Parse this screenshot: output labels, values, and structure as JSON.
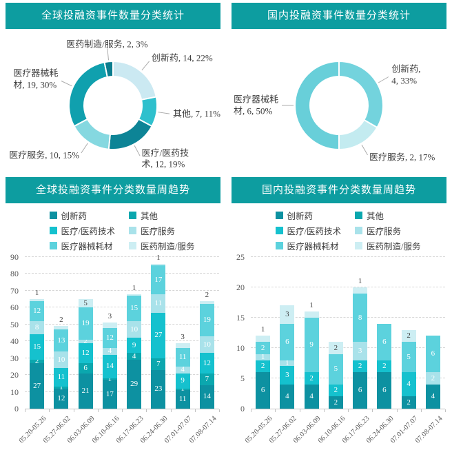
{
  "accent_color": "#0d9da0",
  "label_color": "#3f3f3f",
  "axis_color": "#595959",
  "chart_data": [
    {
      "type": "pie",
      "variant": "donut",
      "title": "全球投融资事件数量分类统计",
      "labels": [
        "创新药",
        "其他",
        "医疗/医药技术",
        "医疗服务",
        "医疗器械耗材",
        "医药制造/服务"
      ],
      "values": [
        14,
        7,
        12,
        10,
        19,
        2
      ],
      "percents": [
        "22%",
        "11%",
        "19%",
        "15%",
        "30%",
        "3%"
      ],
      "display_labels": [
        "创新药, 14, 22%",
        "其他, 7, 11%",
        "医疗/医药技\n术, 12, 19%",
        "医疗服务, 10, 15%",
        "医疗器械耗\n材, 19, 30%",
        "医药制造/服务, 2, 3%"
      ],
      "colors": [
        "#cbe9f2",
        "#2fc0cd",
        "#0d8496",
        "#85d8e0",
        "#10a0ae",
        "#0b7d8e"
      ],
      "legend": false
    },
    {
      "type": "pie",
      "variant": "donut",
      "title": "国内投融资事件数量分类统计",
      "labels": [
        "创新药",
        "医疗服务",
        "医疗器械耗材"
      ],
      "values": [
        4,
        2,
        6
      ],
      "percents": [
        "33%",
        "17%",
        "50%"
      ],
      "display_labels": [
        "创新药,\n4, 33%",
        "医疗服务, 2, 17%",
        "医疗器械耗\n材, 6, 50%"
      ],
      "colors": [
        "#73d3dd",
        "#c3ebf0",
        "#68cfd9"
      ],
      "legend": false
    },
    {
      "type": "bar",
      "stacked": true,
      "title": "全球投融资事件分类数量周趋势",
      "categories": [
        "05.20-05.26",
        "05.27-06.02",
        "06.03-06.09",
        "06.10-06.16",
        "06.17-06.23",
        "06.24-06.30",
        "07.01-07.07",
        "07.08-07.14"
      ],
      "ylim": [
        0,
        90
      ],
      "y_step": 10,
      "grid": true,
      "legend_position": "top",
      "series": [
        {
          "name": "创新药",
          "color": "#0d91a1",
          "values": [
            27,
            12,
            21,
            17,
            29,
            23,
            11,
            14
          ]
        },
        {
          "name": "其他",
          "color": "#0ba7ae",
          "values": [
            2,
            1,
            6,
            1,
            4,
            7,
            1,
            7
          ]
        },
        {
          "name": "医疗/医药技术",
          "color": "#15c1ce",
          "values": [
            15,
            11,
            12,
            14,
            9,
            27,
            9,
            12
          ]
        },
        {
          "name": "医疗服务",
          "color": "#a9e2ea",
          "values": [
            8,
            10,
            2,
            4,
            10,
            11,
            4,
            10
          ]
        },
        {
          "name": "医疗器械耗材",
          "color": "#5cd2dd",
          "values": [
            12,
            13,
            19,
            12,
            15,
            17,
            11,
            19
          ]
        },
        {
          "name": "医药制造/服务",
          "color": "#cdeef3",
          "values": [
            1,
            2,
            5,
            3,
            1,
            1,
            3,
            2
          ]
        }
      ]
    },
    {
      "type": "bar",
      "stacked": true,
      "title": "国内投融资事件分类数量周趋势",
      "categories": [
        "05.20-05.26",
        "05.27-06.02",
        "06.03-06.09",
        "06.10-06.16",
        "06.17-06.23",
        "06.24-06.30",
        "07.01-07.07",
        "07.08-07.14"
      ],
      "ylim": [
        0,
        25
      ],
      "y_step": 5,
      "grid": true,
      "legend_position": "top",
      "series": [
        {
          "name": "创新药",
          "color": "#0d91a1",
          "values": [
            6,
            4,
            4,
            2,
            6,
            6,
            2,
            4
          ]
        },
        {
          "name": "其他",
          "color": "#0ba7ae",
          "values": [
            0,
            0,
            0,
            0,
            0,
            0,
            0,
            0
          ]
        },
        {
          "name": "医疗/医药技术",
          "color": "#15c1ce",
          "values": [
            2,
            3,
            2,
            2,
            2,
            2,
            4,
            0
          ]
        },
        {
          "name": "医疗服务",
          "color": "#a9e2ea",
          "values": [
            1,
            1,
            0,
            0,
            3,
            0,
            0,
            2
          ]
        },
        {
          "name": "医疗器械耗材",
          "color": "#5cd2dd",
          "values": [
            2,
            6,
            9,
            5,
            8,
            6,
            5,
            6
          ]
        },
        {
          "name": "医药制造/服务",
          "color": "#cdeef3",
          "values": [
            1,
            3,
            1,
            2,
            1,
            0,
            2,
            0
          ]
        }
      ]
    }
  ]
}
